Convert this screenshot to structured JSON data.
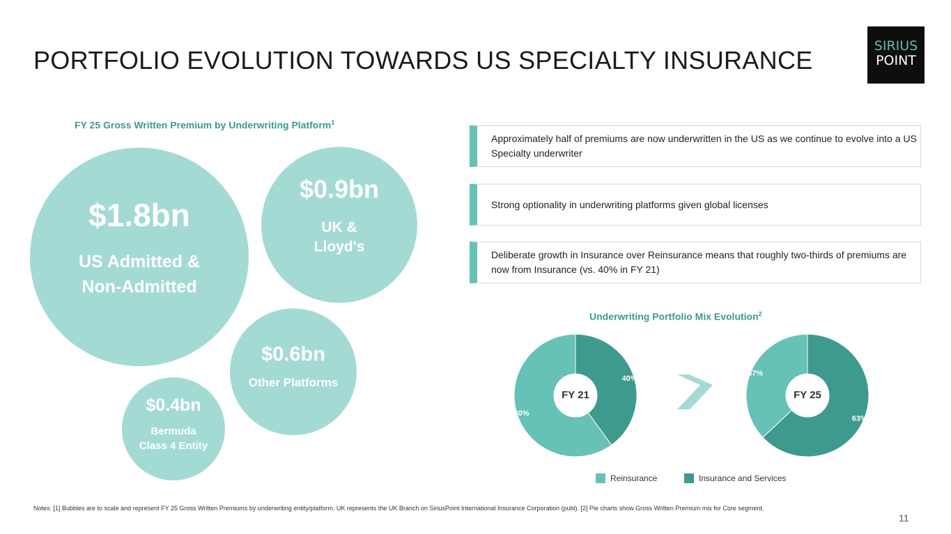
{
  "title": "PORTFOLIO EVOLUTION TOWARDS US SPECIALTY INSURANCE",
  "logo": {
    "line1": "SIRIUS",
    "line2": "POINT"
  },
  "bubbles": {
    "heading": "FY 25 Gross Written Premium by Underwriting Platform",
    "heading_sup": "1",
    "items": [
      {
        "value": "$1.8bn",
        "label_line1": "US Admitted &",
        "label_line2": "Non-Admitted"
      },
      {
        "value": "$0.9bn",
        "label_line1": "UK &",
        "label_line2": "Lloyd's"
      },
      {
        "value": "$0.6bn",
        "label_line1": "Other Platforms",
        "label_line2": ""
      },
      {
        "value": "$0.4bn",
        "label_line1": "Bermuda",
        "label_line2": "Class 4 Entity"
      }
    ]
  },
  "callouts": [
    "Approximately half of premiums are now underwritten in the US as we continue to evolve into a US Specialty underwriter",
    "Strong optionality in underwriting platforms given global licenses",
    "Deliberate growth in Insurance over Reinsurance means that roughly two-thirds of premiums are now from Insurance (vs. 40% in FY 21)"
  ],
  "colors": {
    "reinsurance": "#66c1b6",
    "insurance": "#3e9a8e",
    "bubble": "#a3dbd4",
    "accent": "#3d9a8f"
  },
  "chart_data": {
    "type": "pie",
    "title": "Underwriting Portfolio Mix Evolution",
    "title_sup": "2",
    "legend": [
      "Reinsurance",
      "Insurance and Services"
    ],
    "legend_position": "bottom",
    "charts": [
      {
        "label": "FY 21",
        "values": [
          {
            "name": "Reinsurance",
            "value": 60,
            "label": "60%"
          },
          {
            "name": "Insurance and Services",
            "value": 40,
            "label": "40%"
          }
        ]
      },
      {
        "label": "FY 25",
        "values": [
          {
            "name": "Reinsurance",
            "value": 37,
            "label": "37%"
          },
          {
            "name": "Insurance and Services",
            "value": 63,
            "label": "63%"
          }
        ]
      }
    ]
  },
  "notes": "Notes: [1] Bubbles are to scale and represent FY 25 Gross Written Premiums by underwriting entity/platform. UK represents the UK Branch on SiriusPoint International Insurance Corporation (publ). [2] Pie charts show Gross Written Premium mix for Core segment.",
  "page_number": "11"
}
